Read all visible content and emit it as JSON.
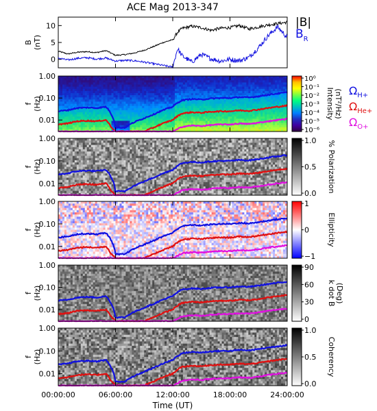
{
  "chart_data": [
    {
      "id": "magnitude",
      "type": "line",
      "title": "ACE Mag 2013-347",
      "ylabel_main": "B",
      "ylabel_unit": "(nT)",
      "ylim": [
        -2.5,
        12.5
      ],
      "yticks": [
        0,
        5,
        10
      ],
      "ytick_labels": [
        "0",
        "5",
        "10"
      ],
      "x": [
        0,
        1,
        2,
        3,
        4,
        5,
        6,
        7,
        8,
        9,
        10,
        11,
        12,
        12.5,
        13,
        14,
        15,
        16,
        17,
        18,
        19,
        20,
        21,
        22,
        23,
        24
      ],
      "legend": [
        {
          "main": "|B|",
          "sub": "",
          "color": "#000000"
        },
        {
          "main": "B",
          "sub": "R",
          "color": "#1010e0"
        }
      ],
      "series": [
        {
          "name": "|B|",
          "color": "#000000",
          "values": [
            2.4,
            1.6,
            2.1,
            2.3,
            2.0,
            2.6,
            1.2,
            1.4,
            1.9,
            2.7,
            3.8,
            5.0,
            5.8,
            8.0,
            9.2,
            9.8,
            9.4,
            8.6,
            9.2,
            9.4,
            10.0,
            9.0,
            9.6,
            10.2,
            10.6,
            11.0
          ]
        },
        {
          "name": "B_R",
          "color": "#1010e0",
          "values": [
            0.4,
            -0.2,
            0.3,
            0.5,
            0.1,
            0.4,
            -0.5,
            -0.3,
            -0.4,
            -0.8,
            -1.3,
            -1.8,
            -2.3,
            3.2,
            1.0,
            -0.8,
            1.5,
            0.2,
            -0.5,
            0.0,
            -0.4,
            0.6,
            3.5,
            7.0,
            9.6,
            6.5
          ]
        }
      ]
    },
    {
      "id": "spectrogram",
      "type": "heatmap",
      "ylabel_main": "f",
      "ylabel_unit": "(Hz)",
      "ylim": [
        0.003,
        1.0
      ],
      "yscale": "log",
      "ytick_labels": [
        "1.00",
        "0.10",
        "0.01"
      ],
      "colorbar_title": "Intensity",
      "colorbar_unit": "(nT²/Hz)",
      "colorbar_ticks": [
        "10⁰",
        "10⁻¹",
        "10⁻²",
        "10⁻³",
        "10⁻⁴",
        "10⁻⁵",
        "10⁻⁶"
      ],
      "colorbar_colors": [
        "#ff0000",
        "#ffc000",
        "#ffff00",
        "#80ff40",
        "#00ff80",
        "#00c0c0",
        "#0080ff",
        "#2030c0",
        "#4000a0",
        "#300040"
      ],
      "gyro_legend": [
        {
          "symbol": "Ω",
          "sub": "H+",
          "color": "#1010e0"
        },
        {
          "symbol": "Ω",
          "sub": "He+",
          "color": "#e01010"
        },
        {
          "symbol": "Ω",
          "sub": "O+",
          "color": "#e010e0"
        }
      ]
    },
    {
      "id": "polarization",
      "type": "heatmap",
      "ylabel_main": "f",
      "ylabel_unit": "(Hz)",
      "ylim": [
        0.003,
        1.0
      ],
      "yscale": "log",
      "ytick_labels": [
        "1.00",
        "0.10",
        "0.01"
      ],
      "colorbar_title": "% Polarization",
      "colorbar_ticks": [
        "1.0",
        "0.5",
        "0.0"
      ],
      "colorbar_colors": [
        "#000000",
        "#808080",
        "#ffffff"
      ]
    },
    {
      "id": "ellipticity",
      "type": "heatmap",
      "ylabel_main": "f",
      "ylabel_unit": "(Hz)",
      "ylim": [
        0.003,
        1.0
      ],
      "yscale": "log",
      "ytick_labels": [
        "1.00",
        "0.10",
        "0.01"
      ],
      "colorbar_title": "Ellipticity",
      "colorbar_ticks": [
        "1",
        "0",
        "−1"
      ],
      "colorbar_colors": [
        "#ff0000",
        "#ffffff",
        "#0000ff"
      ]
    },
    {
      "id": "kdotb",
      "type": "heatmap",
      "ylabel_main": "f",
      "ylabel_unit": "(Hz)",
      "ylim": [
        0.003,
        1.0
      ],
      "yscale": "log",
      "ytick_labels": [
        "1.00",
        "0.10",
        "0.01"
      ],
      "colorbar_title": "k dot B",
      "colorbar_unit": "(Deg)",
      "colorbar_ticks": [
        "90",
        "60",
        "30",
        "0"
      ],
      "colorbar_colors": [
        "#000000",
        "#808080",
        "#ffffff"
      ]
    },
    {
      "id": "coherency",
      "type": "heatmap",
      "ylabel_main": "f",
      "ylabel_unit": "(Hz)",
      "ylim": [
        0.003,
        1.0
      ],
      "yscale": "log",
      "ytick_labels": [
        "1.00",
        "0.10",
        "0.01"
      ],
      "colorbar_title": "Coherency",
      "colorbar_ticks": [
        "1.0",
        "0.5",
        "0.0"
      ],
      "colorbar_colors": [
        "#000000",
        "#808080",
        "#ffffff"
      ]
    }
  ],
  "gyro_lines": {
    "x": [
      0,
      1,
      2,
      3,
      4,
      5,
      5.5,
      6,
      7,
      8,
      9,
      10,
      11,
      12,
      12.5,
      13,
      14,
      15,
      16,
      17,
      18,
      19,
      20,
      21,
      22,
      23,
      24
    ],
    "H": [
      0.025,
      0.028,
      0.035,
      0.037,
      0.035,
      0.04,
      0.02,
      0.0045,
      0.0045,
      0.008,
      0.012,
      0.018,
      0.028,
      0.04,
      0.06,
      0.08,
      0.09,
      0.085,
      0.095,
      0.1,
      0.1,
      0.11,
      0.105,
      0.12,
      0.14,
      0.16,
      0.18
    ],
    "He": [
      0.0063,
      0.007,
      0.0088,
      0.0093,
      0.0088,
      0.01,
      0.005,
      0.003,
      0.003,
      0.003,
      0.003,
      0.0045,
      0.007,
      0.01,
      0.015,
      0.02,
      0.0225,
      0.0213,
      0.0238,
      0.025,
      0.025,
      0.0275,
      0.0263,
      0.03,
      0.035,
      0.04,
      0.045
    ],
    "O": [
      0.003,
      0.003,
      0.003,
      0.003,
      0.003,
      0.003,
      0.003,
      0.003,
      0.003,
      0.003,
      0.003,
      0.003,
      0.003,
      0.003,
      0.0038,
      0.005,
      0.0056,
      0.0053,
      0.0059,
      0.0063,
      0.0063,
      0.0069,
      0.0066,
      0.0075,
      0.0088,
      0.01,
      0.0113
    ]
  },
  "xaxis": {
    "label": "Time (UT)",
    "range": [
      0,
      24
    ],
    "ticks": [
      0,
      6,
      12,
      18,
      24
    ],
    "tick_labels": [
      "00:00:00",
      "06:00:00",
      "12:00:00",
      "18:00:00",
      "24:00:00"
    ]
  }
}
